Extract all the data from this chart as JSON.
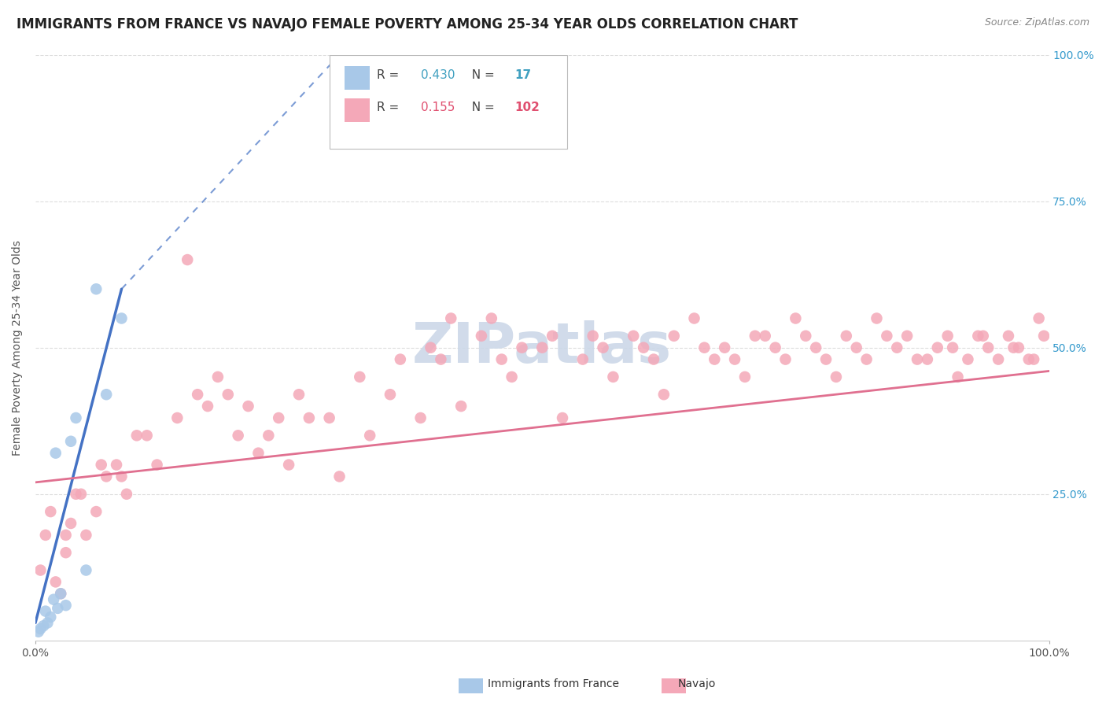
{
  "title": "IMMIGRANTS FROM FRANCE VS NAVAJO FEMALE POVERTY AMONG 25-34 YEAR OLDS CORRELATION CHART",
  "source": "Source: ZipAtlas.com",
  "ylabel": "Female Poverty Among 25-34 Year Olds",
  "watermark": "ZIPatlas",
  "legend_entries": [
    {
      "label": "Immigrants from France",
      "color": "#a8c8e8",
      "R": 0.43,
      "N": 17
    },
    {
      "label": "Navajo",
      "color": "#f4a8b8",
      "R": 0.155,
      "N": 102
    }
  ],
  "blue_scatter_x": [
    0.3,
    0.5,
    0.8,
    1.0,
    1.2,
    1.5,
    1.8,
    2.0,
    2.2,
    2.5,
    3.0,
    3.5,
    4.0,
    5.0,
    6.0,
    7.0,
    8.5
  ],
  "blue_scatter_y": [
    1.5,
    2.0,
    2.5,
    5.0,
    3.0,
    4.0,
    7.0,
    32.0,
    5.5,
    8.0,
    6.0,
    34.0,
    38.0,
    12.0,
    60.0,
    42.0,
    55.0
  ],
  "pink_scatter_x": [
    0.5,
    1.0,
    1.5,
    2.0,
    2.5,
    3.0,
    3.5,
    4.0,
    5.0,
    6.0,
    7.0,
    8.0,
    9.0,
    10.0,
    12.0,
    15.0,
    17.0,
    20.0,
    22.0,
    25.0,
    27.0,
    30.0,
    33.0,
    35.0,
    38.0,
    40.0,
    42.0,
    45.0,
    47.0,
    50.0,
    52.0,
    55.0,
    57.0,
    60.0,
    62.0,
    65.0,
    67.0,
    68.0,
    70.0,
    72.0,
    74.0,
    75.0,
    77.0,
    79.0,
    80.0,
    82.0,
    83.0,
    85.0,
    86.0,
    88.0,
    89.0,
    90.0,
    91.0,
    92.0,
    93.0,
    94.0,
    95.0,
    96.0,
    97.0,
    98.0,
    99.0,
    99.5,
    3.0,
    4.5,
    6.5,
    8.5,
    11.0,
    14.0,
    16.0,
    18.0,
    21.0,
    23.0,
    26.0,
    29.0,
    32.0,
    36.0,
    39.0,
    41.0,
    44.0,
    46.0,
    48.0,
    51.0,
    54.0,
    56.0,
    59.0,
    61.0,
    63.0,
    66.0,
    69.0,
    71.0,
    73.0,
    76.0,
    78.0,
    81.0,
    84.0,
    87.0,
    90.5,
    93.5,
    96.5,
    98.5,
    19.0,
    24.0
  ],
  "pink_scatter_y": [
    12.0,
    18.0,
    22.0,
    10.0,
    8.0,
    15.0,
    20.0,
    25.0,
    18.0,
    22.0,
    28.0,
    30.0,
    25.0,
    35.0,
    30.0,
    65.0,
    40.0,
    35.0,
    32.0,
    30.0,
    38.0,
    28.0,
    35.0,
    42.0,
    38.0,
    48.0,
    40.0,
    55.0,
    45.0,
    50.0,
    38.0,
    52.0,
    45.0,
    50.0,
    42.0,
    55.0,
    48.0,
    50.0,
    45.0,
    52.0,
    48.0,
    55.0,
    50.0,
    45.0,
    52.0,
    48.0,
    55.0,
    50.0,
    52.0,
    48.0,
    50.0,
    52.0,
    45.0,
    48.0,
    52.0,
    50.0,
    48.0,
    52.0,
    50.0,
    48.0,
    55.0,
    52.0,
    18.0,
    25.0,
    30.0,
    28.0,
    35.0,
    38.0,
    42.0,
    45.0,
    40.0,
    35.0,
    42.0,
    38.0,
    45.0,
    48.0,
    50.0,
    55.0,
    52.0,
    48.0,
    50.0,
    52.0,
    48.0,
    50.0,
    52.0,
    48.0,
    52.0,
    50.0,
    48.0,
    52.0,
    50.0,
    52.0,
    48.0,
    50.0,
    52.0,
    48.0,
    50.0,
    52.0,
    50.0,
    48.0,
    42.0,
    38.0
  ],
  "xlim": [
    0,
    100
  ],
  "ylim": [
    0,
    100
  ],
  "ytick_values": [
    25,
    50,
    75,
    100
  ],
  "blue_color": "#a8c8e8",
  "pink_color": "#f4a8b8",
  "blue_line_color": "#4472c4",
  "pink_line_color": "#e07090",
  "grid_color": "#dddddd",
  "background_color": "#ffffff",
  "title_fontsize": 12,
  "axis_label_fontsize": 10,
  "tick_fontsize": 10,
  "legend_fontsize": 11,
  "watermark_color": "#ccd8e8",
  "watermark_fontsize": 52,
  "legend_text_color": "#40a0c0",
  "legend_n_color": "#e05070",
  "blue_line_start_x": 0.0,
  "blue_line_start_y": 3.0,
  "blue_line_solid_end_x": 8.5,
  "blue_line_solid_end_y": 60.0,
  "blue_line_dash_end_x": 30.0,
  "blue_line_dash_end_y": 100.0,
  "pink_line_start_x": 0.0,
  "pink_line_start_y": 27.0,
  "pink_line_end_x": 100.0,
  "pink_line_end_y": 46.0
}
